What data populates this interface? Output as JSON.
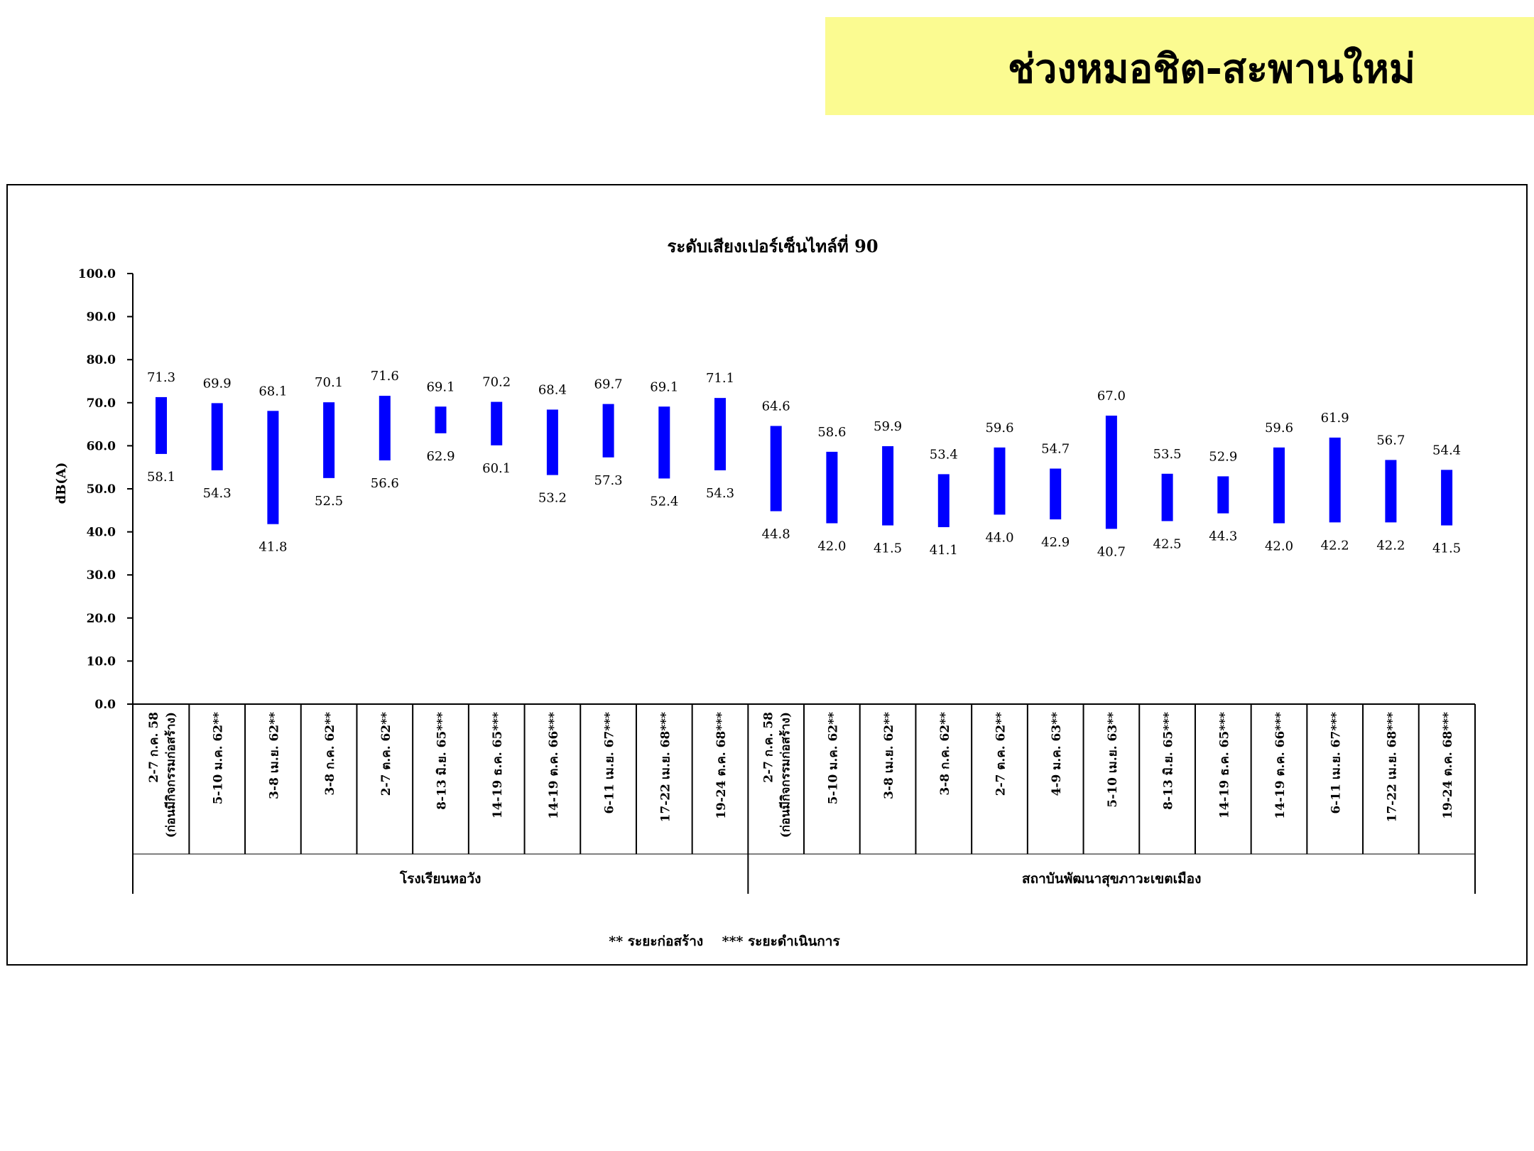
{
  "header": {
    "title": "ช่วงหมอชิต-สะพานใหม่"
  },
  "legend": {
    "text": "** ระยะก่อสร้าง    *** ระยะดำเนินการ"
  },
  "colors": {
    "bar": "#0000ff",
    "header_bg": "#fbfb91",
    "frame": "#000000"
  },
  "chart_data": {
    "type": "bar",
    "subtype": "floating-range",
    "title": "ระดับเสียงเปอร์เซ็นไทล์ที่ 90",
    "xlabel": "",
    "ylabel": "dB(A)",
    "ylim": [
      0,
      100
    ],
    "yticks": [
      "0.0",
      "10.0",
      "20.0",
      "30.0",
      "40.0",
      "50.0",
      "60.0",
      "70.0",
      "80.0",
      "90.0",
      "100.0"
    ],
    "grid": false,
    "legend_position": "bottom-center",
    "groups": [
      {
        "name": "โรงเรียนหอวัง",
        "start": 0,
        "count": 11
      },
      {
        "name": "สถาบันพัฒนาสุขภาวะเขตเมือง",
        "start": 11,
        "count": 13
      }
    ],
    "categories": [
      [
        "2-7 ก.ค. 58",
        "(ก่อนมีกิจกรรมก่อสร้าง)"
      ],
      [
        "5-10 ม.ค. 62**"
      ],
      [
        "3-8 เม.ย. 62**"
      ],
      [
        "3-8 ก.ค. 62**"
      ],
      [
        "2-7 ต.ค. 62**"
      ],
      [
        "8-13 มิ.ย. 65***"
      ],
      [
        "14-19 ธ.ค. 65***"
      ],
      [
        "14-19 ต.ค. 66***"
      ],
      [
        "6-11 เม.ย. 67***"
      ],
      [
        "17-22 เม.ย. 68***"
      ],
      [
        "19-24 ต.ค. 68***"
      ],
      [
        "2-7 ก.ค. 58",
        "(ก่อนมีกิจกรรมก่อสร้าง)"
      ],
      [
        "5-10 ม.ค. 62**"
      ],
      [
        "3-8 เม.ย. 62**"
      ],
      [
        "3-8 ก.ค. 62**"
      ],
      [
        "2-7 ต.ค. 62**"
      ],
      [
        "4-9 ม.ค. 63**"
      ],
      [
        "5-10 เม.ย. 63**"
      ],
      [
        "8-13 มิ.ย. 65***"
      ],
      [
        "14-19 ธ.ค. 65***"
      ],
      [
        "14-19 ต.ค. 66***"
      ],
      [
        "6-11 เม.ย. 67***"
      ],
      [
        "17-22 เม.ย. 68***"
      ],
      [
        "19-24 ต.ค. 68***"
      ]
    ],
    "series": [
      {
        "name": "",
        "values_high": [
          71.3,
          69.9,
          68.1,
          70.1,
          71.6,
          69.1,
          70.2,
          68.4,
          69.7,
          69.1,
          71.1,
          64.6,
          58.6,
          59.9,
          53.4,
          59.6,
          54.7,
          67.0,
          53.5,
          52.9,
          59.6,
          61.9,
          56.7,
          54.4
        ],
        "values_low": [
          58.1,
          54.3,
          41.8,
          52.5,
          56.6,
          62.9,
          60.1,
          53.2,
          57.3,
          52.4,
          54.3,
          44.8,
          42.0,
          41.5,
          41.1,
          44.0,
          42.9,
          40.7,
          42.5,
          44.3,
          42.0,
          42.2,
          42.2,
          41.5
        ]
      }
    ]
  }
}
